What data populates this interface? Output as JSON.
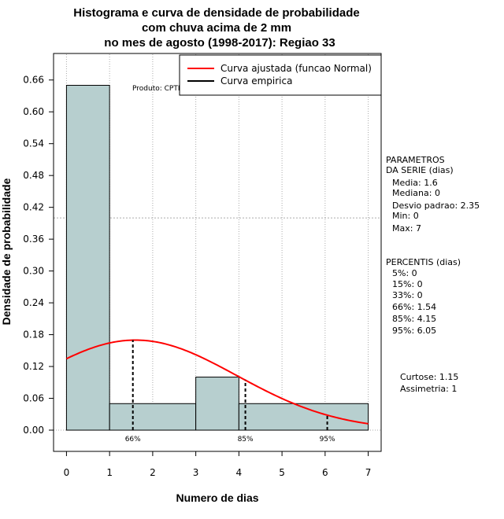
{
  "chart_data": {
    "type": "bar",
    "title": [
      "Histograma e curva de densidade de probabilidade",
      "com chuva acima de 2 mm",
      "no mes de agosto (1998-2017): Regiao 33"
    ],
    "xlabel": "Numero de dias",
    "ylabel": "Densidade de probabilidade",
    "xlim": [
      -0.3,
      7.3
    ],
    "ylim": [
      -0.04,
      0.71
    ],
    "x_ticks": [
      "0",
      "1",
      "2",
      "3",
      "4",
      "5",
      "6",
      "7"
    ],
    "y_ticks": [
      "0.00",
      "0.06",
      "0.12",
      "0.18",
      "0.24",
      "0.30",
      "0.36",
      "0.42",
      "0.48",
      "0.54",
      "0.60",
      "0.66"
    ],
    "bins": [
      {
        "x0": 0,
        "x1": 1,
        "value": 0.65
      },
      {
        "x0": 1,
        "x1": 3,
        "value": 0.05
      },
      {
        "x0": 3,
        "x1": 4,
        "value": 0.1
      },
      {
        "x0": 4,
        "x1": 7,
        "value": 0.05
      }
    ],
    "normal_curve": {
      "name": "Curva ajustada (funcao Normal)",
      "mean": 1.6,
      "sd": 2.35,
      "x_from": 0,
      "x_to": 7,
      "color": "#ff0000"
    },
    "empirical_curve": {
      "name": "Curva empirica",
      "color": "#000000"
    },
    "percentile_markers": [
      {
        "label": "66%",
        "x": 1.54
      },
      {
        "label": "85%",
        "x": 4.15
      },
      {
        "label": "95%",
        "x": 6.05
      }
    ],
    "reference_line_y": 0.4,
    "bar_color": "#b7cfcf",
    "product_label": "Produto: CPTEC/INPE",
    "legend_position": "top-right"
  },
  "stats": {
    "parametros_title": [
      "PARAMETROS",
      "DA SERIE (dias)"
    ],
    "parametros": [
      "Media: 1.6",
      "Mediana: 0",
      "Desvio padrao: 2.35",
      "Min: 0",
      "Max: 7"
    ],
    "percentis_title": "PERCENTIS (dias)",
    "percentis": [
      "5%: 0",
      "15%: 0",
      "33%: 0",
      "66%: 1.54",
      "85%: 4.15",
      "95%: 6.05"
    ],
    "curtose": "Curtose: 1.15",
    "assimetria": "Assimetria: 1"
  }
}
